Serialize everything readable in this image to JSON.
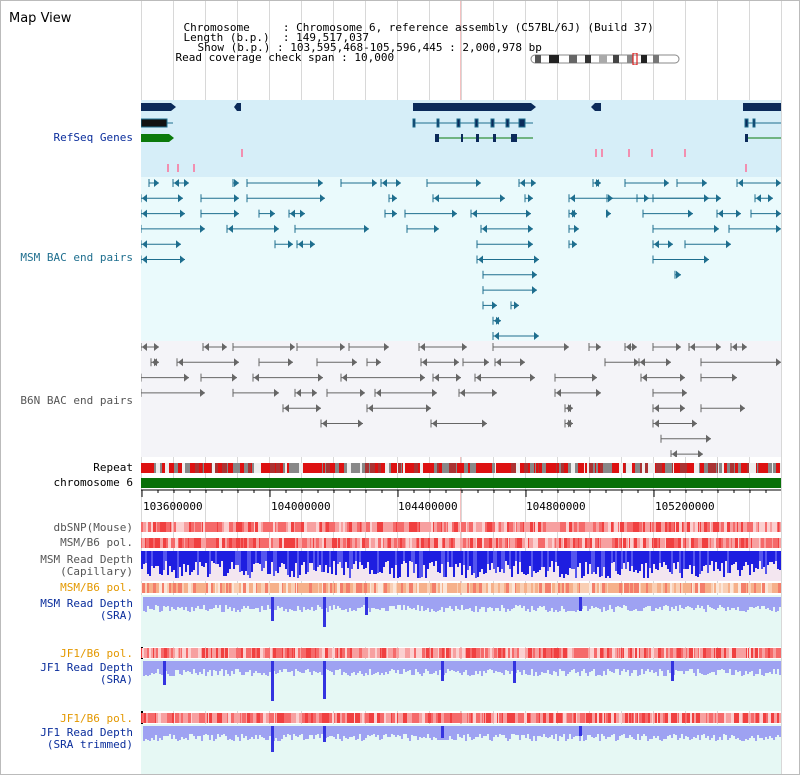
{
  "view_title": "Map View",
  "info": {
    "chromosome_label": "Chromosome",
    "chromosome_value": "Chromosome 6, reference assembly (C57BL/6J) (Build 37)",
    "length_label": "Length (b.p.)",
    "length_value": "149,517,037",
    "show_label": "Show (b.p.)",
    "show_value": "103,595,468-105,596,445 : 2,000,978 bp",
    "coverage_label": "Read coverage check span",
    "coverage_value": "10,000"
  },
  "tracks": {
    "refseq": "RefSeq Genes",
    "msm_bac": "MSM BAC end pairs",
    "b6n_bac": "B6N BAC end pairs",
    "repeat": "Repeat",
    "chromosome": "chromosome 6",
    "dbsnp": "dbSNP(Mouse)",
    "msm_b6_pol_1": "MSM/B6 pol.",
    "msm_read_depth_cap_1": "MSM Read Depth",
    "msm_read_depth_cap_2": "(Capillary)",
    "msm_b6_pol_2": "MSM/B6 pol.",
    "msm_read_depth_sra_1": "MSM Read Depth",
    "msm_read_depth_sra_2": "(SRA)",
    "jf1_b6_pol_1": "JF1/B6 pol.",
    "jf1_read_depth_sra_1": "JF1 Read Depth",
    "jf1_read_depth_sra_2": "(SRA)",
    "jf1_b6_pol_2": "JF1/B6 pol.",
    "jf1_read_depth_trim_1": "JF1 Read Depth",
    "jf1_read_depth_trim_2": "(SRA trimmed)"
  },
  "axis": {
    "ticks": [
      "103600000",
      "104000000",
      "104400000",
      "104800000",
      "105200000"
    ]
  },
  "colors": {
    "gene_navy": "#0b2a5a",
    "gene_green": "#0b7a0b",
    "refseq_bg": "#d6eef8",
    "msm_bg": "#eafafc",
    "b6n_bg": "#f4f4f8",
    "msm_feature": "#1e6e8e",
    "b6n_feature": "#666666",
    "chromosome_bar": "#087008",
    "depth_blue": "#2a28e0",
    "depth_light": "#9a9ef0"
  }
}
